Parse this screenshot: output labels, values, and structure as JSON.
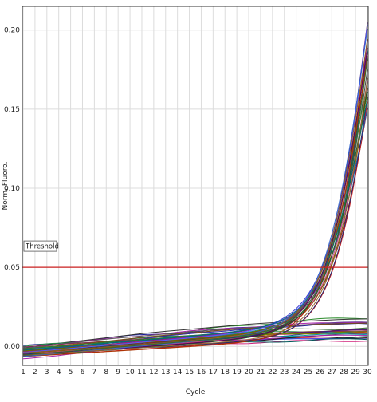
{
  "chart_data": {
    "type": "line",
    "xlabel": "Cycle",
    "ylabel": "Norm. Fluoro.",
    "xlim": [
      1,
      30
    ],
    "ylim": [
      -0.012,
      0.215
    ],
    "x_ticks": [
      "1",
      "2",
      "3",
      "4",
      "5",
      "6",
      "7",
      "8",
      "9",
      "10",
      "11",
      "12",
      "13",
      "14",
      "15",
      "16",
      "17",
      "18",
      "19",
      "20",
      "21",
      "22",
      "23",
      "24",
      "25",
      "26",
      "27",
      "28",
      "29",
      "30"
    ],
    "y_ticks": [
      {
        "value": 0.0,
        "label": "0.00"
      },
      {
        "value": 0.05,
        "label": "0.05"
      },
      {
        "value": 0.1,
        "label": "0.10"
      },
      {
        "value": 0.15,
        "label": "0.15"
      },
      {
        "value": 0.2,
        "label": "0.20"
      }
    ],
    "grid": true,
    "threshold": {
      "label": "Threshold",
      "value": 0.05,
      "color": "#cc2222"
    },
    "amplifying": {
      "count": 26,
      "endpoint_range": [
        0.15,
        0.205
      ],
      "midpoint_range": [
        25.6,
        27.0
      ],
      "baseline_slope_range": [
        0.0004,
        0.0007
      ],
      "colors": [
        "#3b3bd4",
        "#2a7a2a",
        "#8b1a1a",
        "#c46a00",
        "#5a2a8a",
        "#1a8a8a",
        "#cc2222",
        "#444444",
        "#7a5a00",
        "#2255aa",
        "#a0208a",
        "#3b8a3b",
        "#8a3b3b",
        "#204060",
        "#6a6a00",
        "#d44a8a",
        "#1a5a1a",
        "#5a5aff",
        "#8a5a2a",
        "#2a2a6a",
        "#aa3300",
        "#007070",
        "#5a005a",
        "#3366cc",
        "#996633",
        "#336633"
      ]
    },
    "non_amplifying": {
      "count": 26,
      "start_range": [
        -0.008,
        0.0
      ],
      "end_range": [
        0.002,
        0.02
      ],
      "colors": [
        "#7a1a4a",
        "#1a1a9a",
        "#2a8a2a",
        "#aa22aa",
        "#cc2222",
        "#1a6a6a",
        "#333333",
        "#6a3a9a",
        "#0a5a9a",
        "#8a6a00",
        "#4a4aff",
        "#aa5500",
        "#228844",
        "#9a1a1a",
        "#00a0a0",
        "#5a5a5a",
        "#d0207a",
        "#2a2aaa",
        "#6a8a00",
        "#8a2a5a",
        "#005a5a",
        "#aa22aa",
        "#1a1a1a",
        "#3a6a3a",
        "#7a4a1a",
        "#4a1a7a"
      ]
    }
  }
}
